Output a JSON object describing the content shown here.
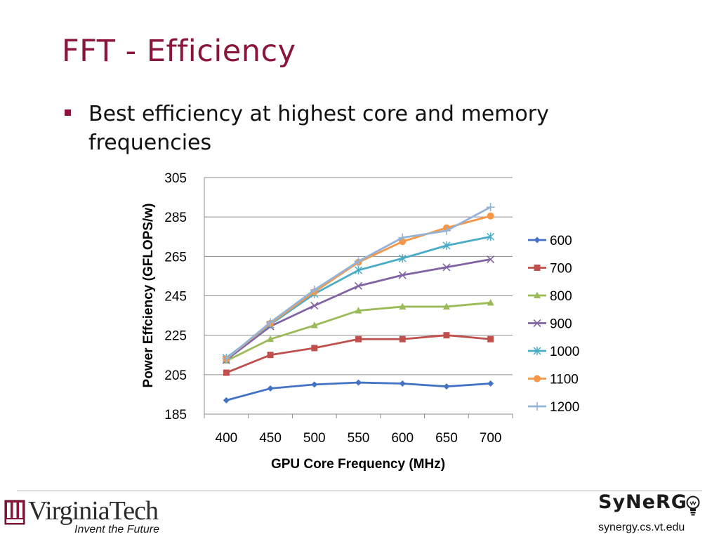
{
  "slide": {
    "title": "FFT - Efficiency",
    "bullet": "Best efficiency at highest core and memory frequencies"
  },
  "chart_data": {
    "type": "line",
    "x": [
      400,
      450,
      500,
      550,
      600,
      650,
      700
    ],
    "xlabel": "GPU Core Frequency (MHz)",
    "ylabel": "Power Effciency (GFLOPS/w)",
    "ylim": [
      185,
      305
    ],
    "yticks": [
      185,
      205,
      225,
      245,
      265,
      285,
      305
    ],
    "grid": "horizontal",
    "legend_position": "right",
    "series": [
      {
        "name": "600",
        "color": "#4472c4",
        "marker": "diamond",
        "values": [
          192,
          198,
          200,
          201,
          200.5,
          199,
          200.5
        ]
      },
      {
        "name": "700",
        "color": "#c0504d",
        "marker": "square",
        "values": [
          206,
          215,
          218.5,
          223,
          223,
          225,
          223
        ]
      },
      {
        "name": "800",
        "color": "#9bbb59",
        "marker": "triangle",
        "values": [
          212,
          223,
          230,
          237.5,
          239.5,
          239.5,
          241.5
        ]
      },
      {
        "name": "900",
        "color": "#8064a2",
        "marker": "x",
        "values": [
          212.5,
          229.5,
          240,
          250,
          255.5,
          259.5,
          263.5
        ]
      },
      {
        "name": "1000",
        "color": "#4bacc6",
        "marker": "star",
        "values": [
          213.5,
          230.5,
          246,
          258,
          264,
          270.5,
          275
        ]
      },
      {
        "name": "1100",
        "color": "#f79646",
        "marker": "circle",
        "values": [
          213,
          231,
          247,
          262,
          272.5,
          279.5,
          285.5
        ]
      },
      {
        "name": "1200",
        "color": "#95b3d7",
        "marker": "plus",
        "values": [
          213,
          231.5,
          248,
          262.5,
          274.5,
          278,
          290
        ]
      }
    ]
  },
  "footer": {
    "university": "VirginiaTech",
    "tagline": "Invent the Future",
    "group": "SyNeRG",
    "url": "synergy.cs.vt.edu"
  },
  "colors": {
    "title": "#8a1538",
    "bullet": "#8a1538"
  },
  "icons": [
    "vt-shield-logo",
    "lightbulb-icon"
  ]
}
